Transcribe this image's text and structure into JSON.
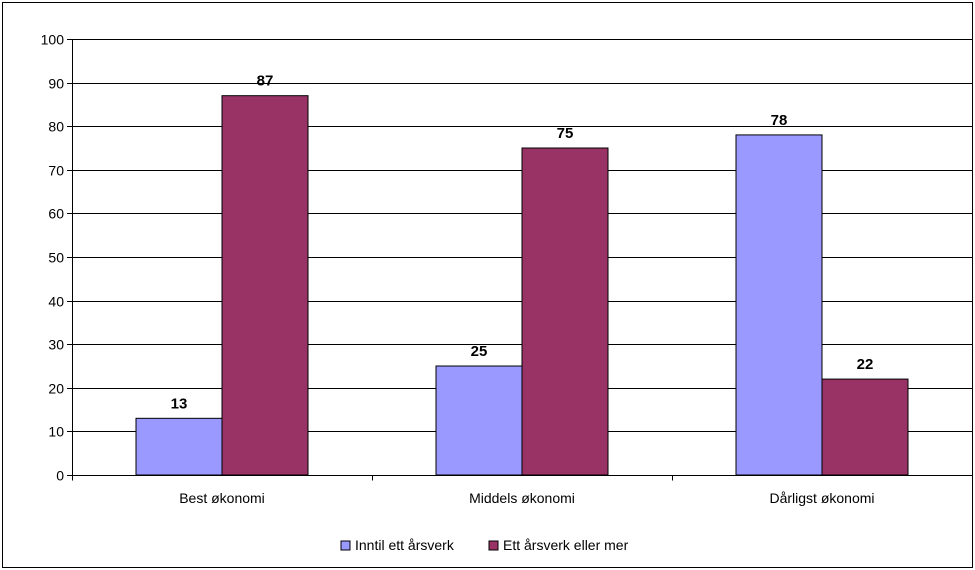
{
  "chart_data": {
    "type": "bar",
    "categories": [
      "Best økonomi",
      "Middels økonomi",
      "Dårligst økonomi"
    ],
    "series": [
      {
        "name": "Inntil ett årsverk",
        "values": [
          13,
          25,
          78
        ],
        "color": "#9999FF"
      },
      {
        "name": "Ett årsverk eller mer",
        "values": [
          87,
          75,
          22
        ],
        "color": "#993366"
      }
    ],
    "yticks": [
      "0",
      "10",
      "20",
      "30",
      "40",
      "50",
      "60",
      "70",
      "80",
      "90",
      "100"
    ],
    "ylim": [
      0,
      100
    ],
    "grid": true,
    "legend_position": "bottom-center",
    "data_labels": true
  }
}
